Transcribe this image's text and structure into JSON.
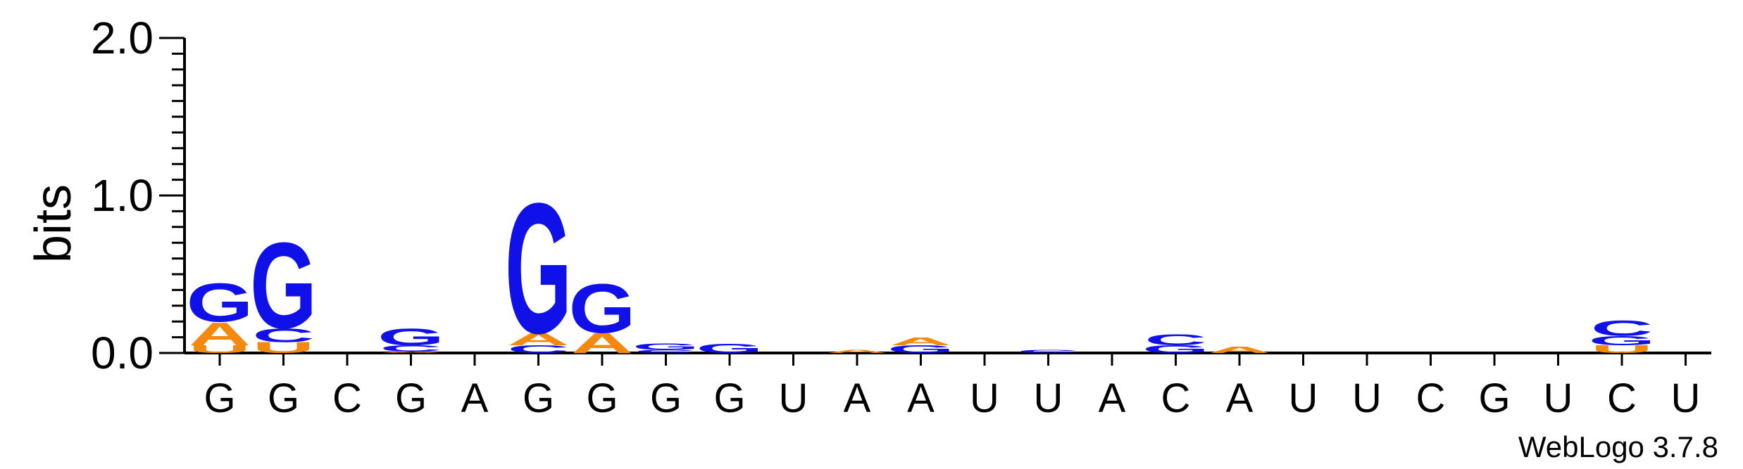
{
  "chart_data": {
    "type": "sequence-logo",
    "ylabel": "bits",
    "ylim": [
      0,
      2
    ],
    "yticks": [
      "0.0",
      "1.0",
      "2.0"
    ],
    "positions": [
      "G",
      "G",
      "C",
      "G",
      "A",
      "G",
      "G",
      "G",
      "G",
      "U",
      "A",
      "A",
      "U",
      "U",
      "A",
      "C",
      "A",
      "U",
      "U",
      "C",
      "G",
      "U",
      "C",
      "U"
    ],
    "stacks": [
      [
        {
          "letter": "U",
          "bits": 0.05
        },
        {
          "letter": "A",
          "bits": 0.15
        },
        {
          "letter": "G",
          "bits": 0.25
        }
      ],
      [
        {
          "letter": "U",
          "bits": 0.07
        },
        {
          "letter": "C",
          "bits": 0.09
        },
        {
          "letter": "G",
          "bits": 0.56
        }
      ],
      [],
      [
        {
          "letter": "A",
          "bits": 0.01
        },
        {
          "letter": "C",
          "bits": 0.04
        },
        {
          "letter": "G",
          "bits": 0.11
        }
      ],
      [],
      [
        {
          "letter": "C",
          "bits": 0.05
        },
        {
          "letter": "A",
          "bits": 0.08
        },
        {
          "letter": "G",
          "bits": 0.85
        }
      ],
      [
        {
          "letter": "A",
          "bits": 0.13
        },
        {
          "letter": "G",
          "bits": 0.32
        }
      ],
      [
        {
          "letter": "C",
          "bits": 0.02
        },
        {
          "letter": "G",
          "bits": 0.04
        }
      ],
      [
        {
          "letter": "G",
          "bits": 0.06
        }
      ],
      [],
      [
        {
          "letter": "A",
          "bits": 0.02
        }
      ],
      [
        {
          "letter": "G",
          "bits": 0.05
        },
        {
          "letter": "A",
          "bits": 0.05
        }
      ],
      [],
      [
        {
          "letter": "C",
          "bits": 0.02
        }
      ],
      [],
      [
        {
          "letter": "G",
          "bits": 0.05
        },
        {
          "letter": "C",
          "bits": 0.07
        }
      ],
      [
        {
          "letter": "A",
          "bits": 0.04
        }
      ],
      [],
      [],
      [],
      [],
      [],
      [
        {
          "letter": "U",
          "bits": 0.05
        },
        {
          "letter": "G",
          "bits": 0.06
        },
        {
          "letter": "C",
          "bits": 0.1
        }
      ],
      []
    ],
    "colors": {
      "A": "#f5880f",
      "U": "#f5880f",
      "C": "#1010e8",
      "G": "#1010e8",
      "axis": "#000000"
    },
    "footer": "WebLogo 3.7.8"
  }
}
